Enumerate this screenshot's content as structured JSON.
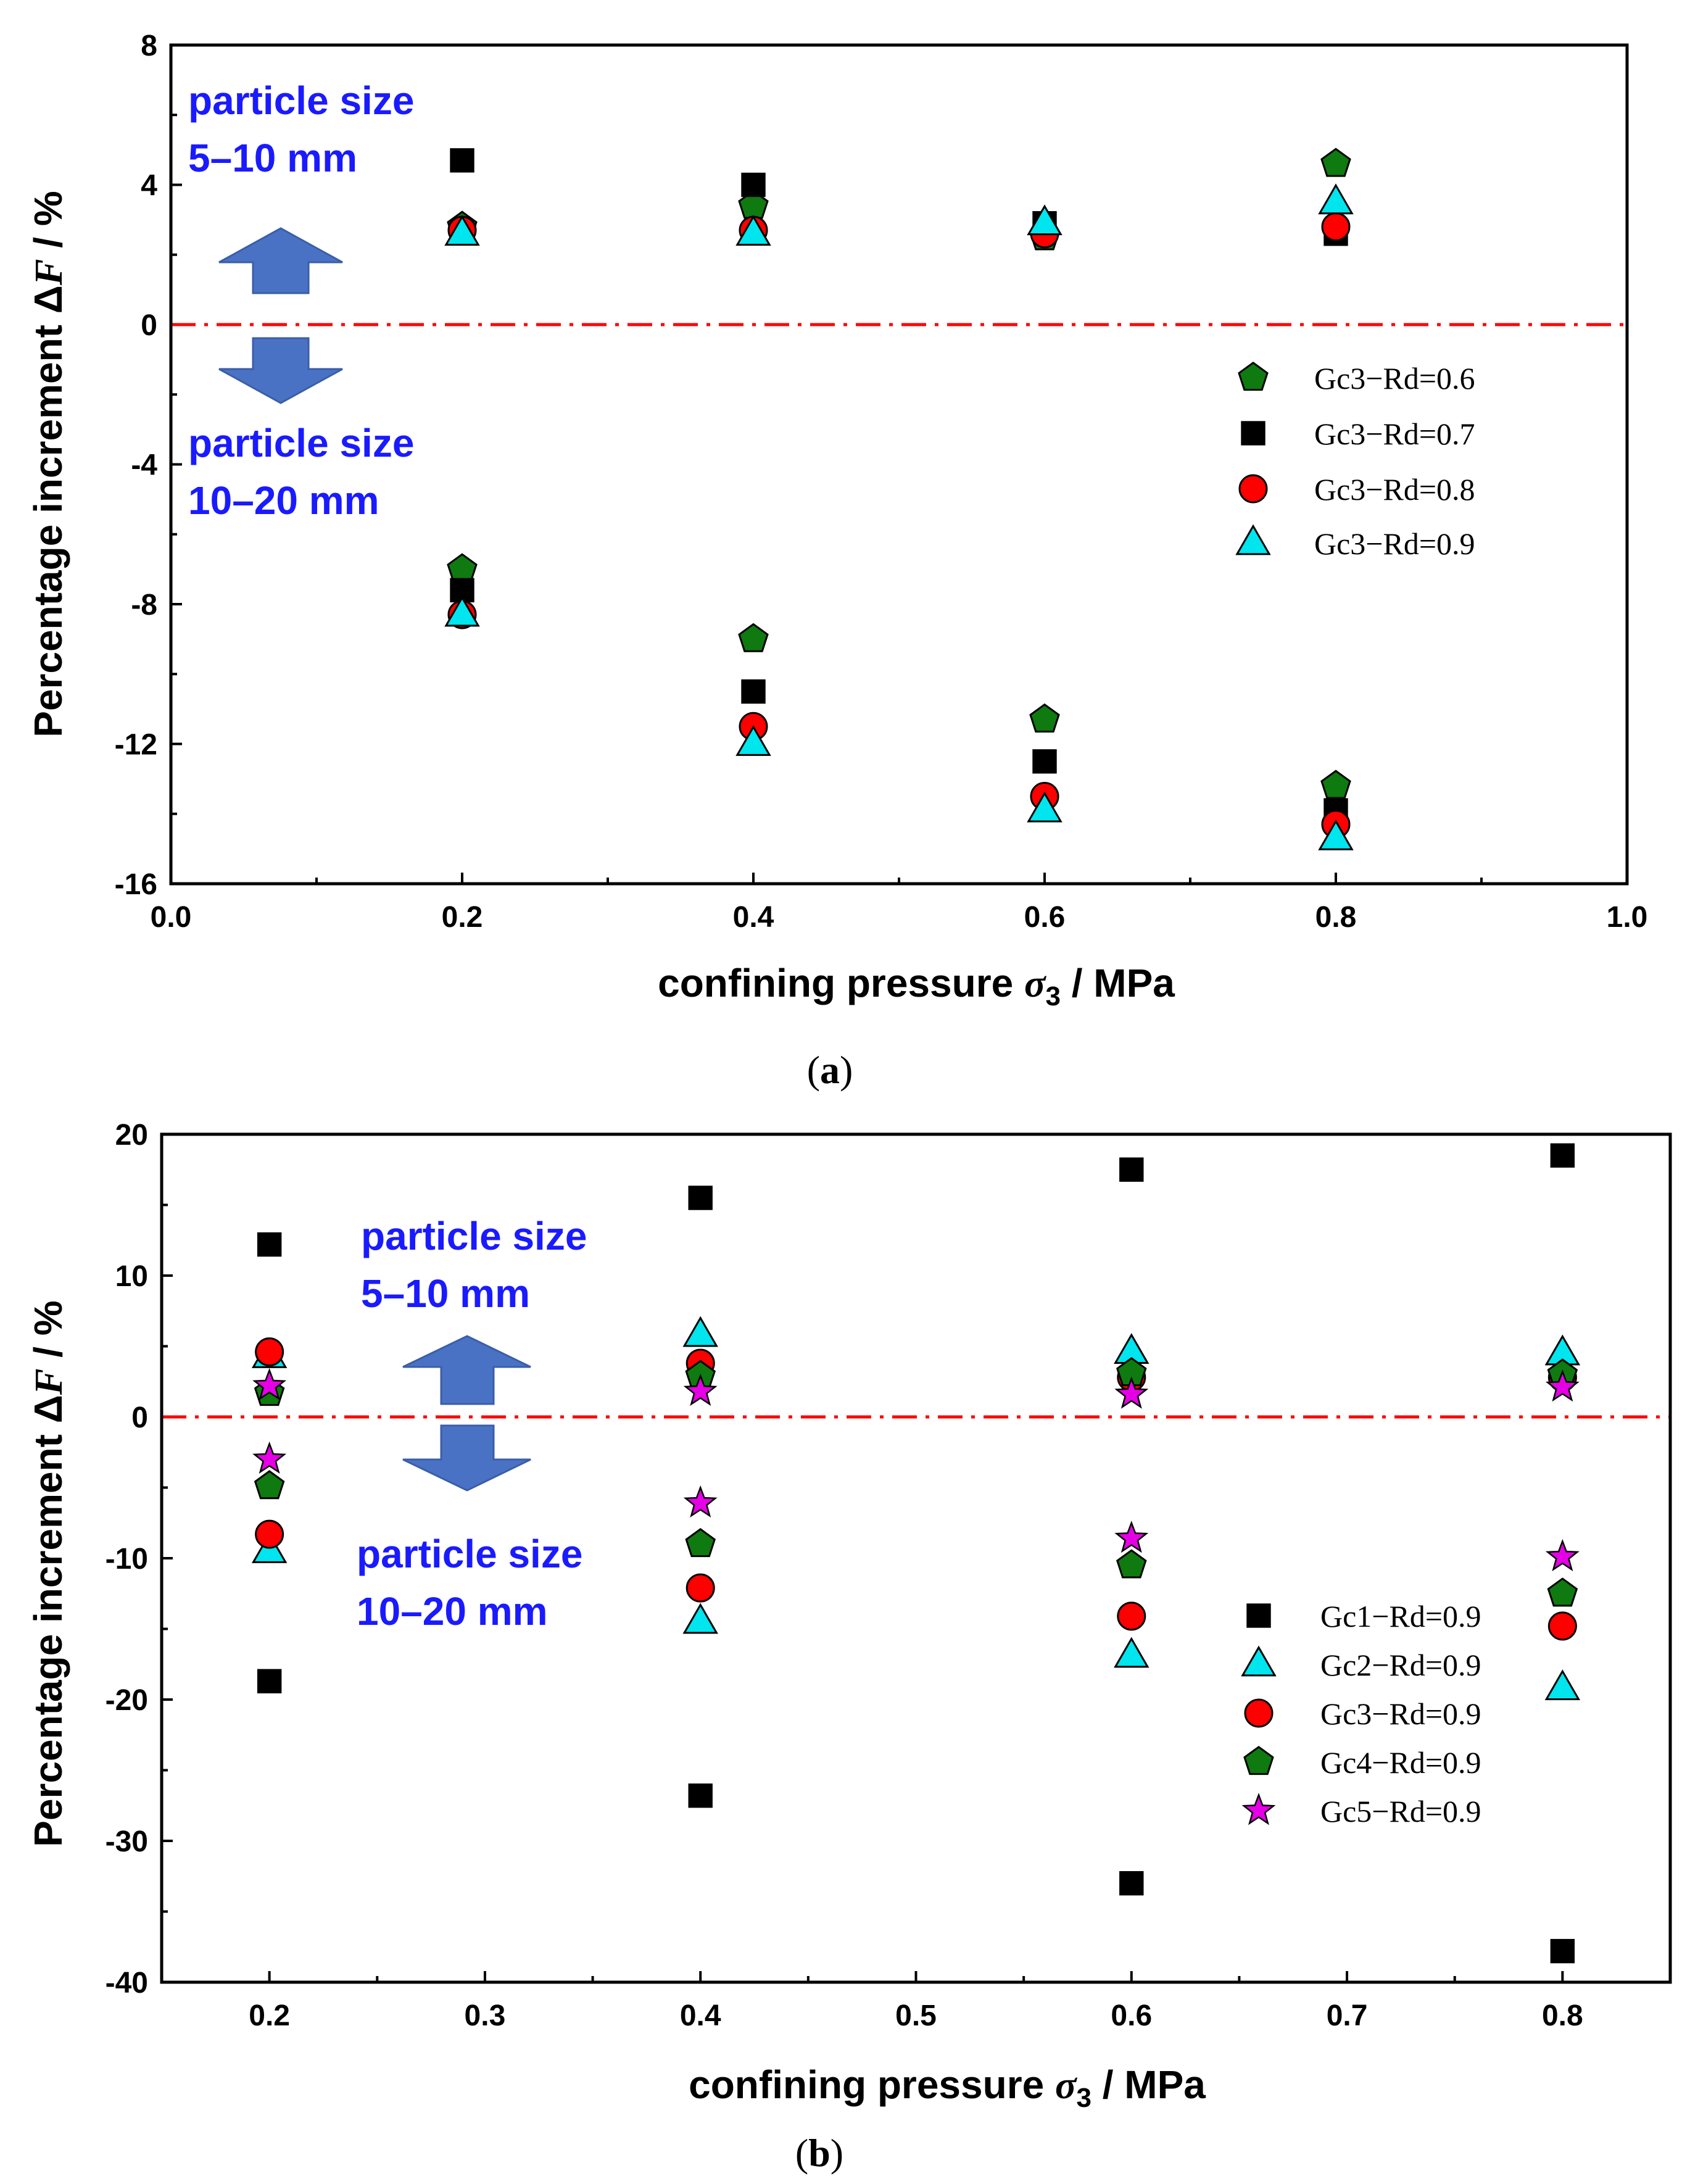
{
  "chart_data": [
    {
      "type": "scatter",
      "panel": "(a)",
      "caption_open": "(",
      "caption_letter": "a",
      "caption_close": ")",
      "xlabel": "confining pressure",
      "xlabel_symbol": "σ",
      "xlabel_subscript": "3",
      "xlabel_unit": " / MPa",
      "ylabel": "Percentage increment Δ",
      "ylabel_symbol": "F",
      "ylabel_unit": " / %",
      "xlim": [
        0.0,
        1.0
      ],
      "ylim": [
        -16,
        8
      ],
      "xticks": [
        0.0,
        0.2,
        0.4,
        0.6,
        0.8,
        1.0
      ],
      "xtick_labels": [
        "0.0",
        "0.2",
        "0.4",
        "0.6",
        "0.8",
        "1.0"
      ],
      "yticks": [
        -16,
        -12,
        -8,
        -4,
        0,
        4,
        8
      ],
      "ytick_labels": [
        "-16",
        "-12",
        "-8",
        "-4",
        "0",
        "4",
        "8"
      ],
      "reference_line": {
        "y": 0,
        "style": "dash-dot",
        "color": "#ff0000"
      },
      "legend_position": "right",
      "annotations": {
        "upper": [
          "particle size",
          "5–10 mm"
        ],
        "lower": [
          "particle size",
          "10–20 mm"
        ]
      },
      "series": [
        {
          "name": "Gc3−Rd=0.6",
          "marker": "pentagon",
          "color": "#0f7a0f",
          "x": [
            0.2,
            0.4,
            0.6,
            0.8,
            0.2,
            0.4,
            0.6,
            0.8
          ],
          "y": [
            2.8,
            3.4,
            2.5,
            4.6,
            -7.0,
            -9.0,
            -11.3,
            -13.2
          ]
        },
        {
          "name": "Gc3−Rd=0.7",
          "marker": "square",
          "color": "#000000",
          "x": [
            0.2,
            0.4,
            0.6,
            0.8,
            0.2,
            0.4,
            0.6,
            0.8
          ],
          "y": [
            4.7,
            4.0,
            2.9,
            2.6,
            -7.6,
            -10.5,
            -12.5,
            -13.9
          ]
        },
        {
          "name": "Gc3−Rd=0.8",
          "marker": "circle",
          "color": "#ff0000",
          "x": [
            0.2,
            0.4,
            0.6,
            0.8,
            0.2,
            0.4,
            0.6,
            0.8
          ],
          "y": [
            2.7,
            2.7,
            2.6,
            2.8,
            -8.3,
            -11.5,
            -13.5,
            -14.3
          ]
        },
        {
          "name": "Gc3−Rd=0.9",
          "marker": "triangle",
          "color": "#00e5ee",
          "x": [
            0.2,
            0.4,
            0.6,
            0.8,
            0.2,
            0.4,
            0.6,
            0.8
          ],
          "y": [
            2.6,
            2.6,
            2.9,
            3.5,
            -8.3,
            -12.0,
            -13.9,
            -14.7
          ]
        }
      ]
    },
    {
      "type": "scatter",
      "panel": "(b)",
      "caption_open": "(",
      "caption_letter": "b",
      "caption_close": ")",
      "xlabel": "confining pressure",
      "xlabel_symbol": "σ",
      "xlabel_subscript": "3",
      "xlabel_unit": " / MPa",
      "ylabel": "Percentage increment Δ",
      "ylabel_symbol": "F",
      "ylabel_unit": " / %",
      "xlim": [
        0.15,
        0.85
      ],
      "ylim": [
        -40,
        20
      ],
      "xticks": [
        0.2,
        0.3,
        0.4,
        0.5,
        0.6,
        0.7,
        0.8
      ],
      "xtick_labels": [
        "0.2",
        "0.3",
        "0.4",
        "0.5",
        "0.6",
        "0.7",
        "0.8"
      ],
      "yticks": [
        -40,
        -30,
        -20,
        -10,
        0,
        10,
        20
      ],
      "ytick_labels": [
        "-40",
        "-30",
        "-20",
        "-10",
        "0",
        "10",
        "20"
      ],
      "reference_line": {
        "y": 0,
        "style": "dash-dot",
        "color": "#ff0000"
      },
      "legend_position": "lower-right",
      "annotations": {
        "upper": [
          "particle size",
          "5–10 mm"
        ],
        "lower": [
          "particle size",
          "10–20 mm"
        ]
      },
      "series": [
        {
          "name": "Gc1−Rd=0.9",
          "marker": "square",
          "color": "#000000",
          "x": [
            0.2,
            0.4,
            0.6,
            0.8,
            0.2,
            0.4,
            0.6,
            0.8
          ],
          "y": [
            12.2,
            15.5,
            17.5,
            18.5,
            -18.7,
            -26.8,
            -33.0,
            -37.8
          ]
        },
        {
          "name": "Gc2−Rd=0.9",
          "marker": "triangle",
          "color": "#00e5ee",
          "x": [
            0.2,
            0.4,
            0.6,
            0.8,
            0.2,
            0.4,
            0.6,
            0.8
          ],
          "y": [
            4.3,
            5.8,
            4.6,
            4.5,
            -9.5,
            -14.5,
            -16.9,
            -19.2
          ]
        },
        {
          "name": "Gc3−Rd=0.9",
          "marker": "circle",
          "color": "#ff0000",
          "x": [
            0.2,
            0.4,
            0.6,
            0.8,
            0.2,
            0.4,
            0.6,
            0.8
          ],
          "y": [
            4.6,
            3.8,
            2.8,
            2.8,
            -8.3,
            -12.1,
            -14.1,
            -14.8
          ]
        },
        {
          "name": "Gc4−Rd=0.9",
          "marker": "pentagon",
          "color": "#0f7a0f",
          "x": [
            0.2,
            0.4,
            0.6,
            0.8,
            0.2,
            0.4,
            0.6,
            0.8
          ],
          "y": [
            1.7,
            2.9,
            3.1,
            3.0,
            -4.9,
            -9.0,
            -10.5,
            -12.5
          ]
        },
        {
          "name": "Gc5−Rd=0.9",
          "marker": "star",
          "color": "#e600e6",
          "x": [
            0.2,
            0.4,
            0.6,
            0.8,
            0.2,
            0.4,
            0.6,
            0.8
          ],
          "y": [
            2.2,
            1.8,
            1.6,
            2.1,
            -3.0,
            -6.1,
            -8.6,
            -9.9
          ]
        }
      ]
    }
  ]
}
